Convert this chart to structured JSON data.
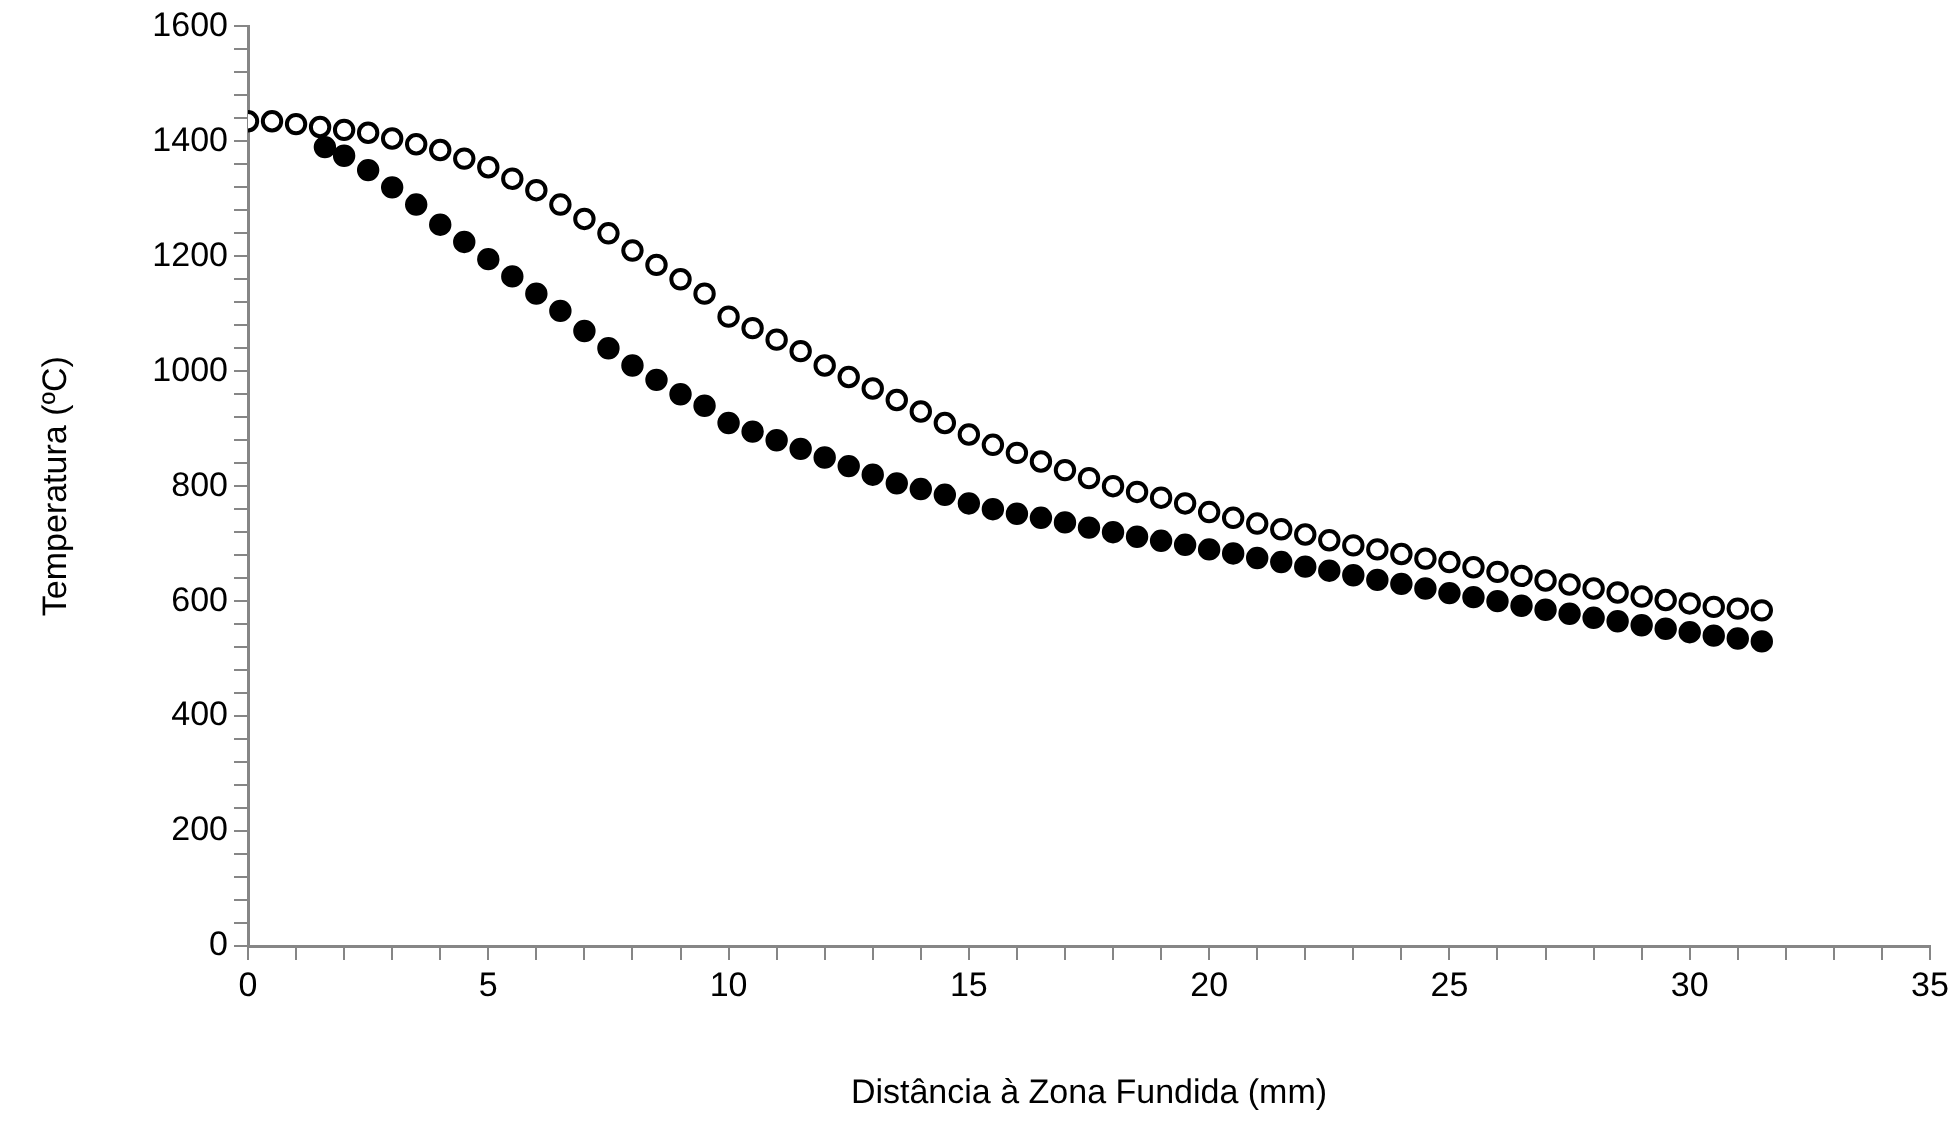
{
  "chart_data": {
    "type": "scatter",
    "xlabel": "Distância à Zona Fundida (mm)",
    "ylabel": "Temperatura (ºC)",
    "xlim": [
      0,
      35
    ],
    "ylim": [
      0,
      1600
    ],
    "xticks": [
      0,
      {
        "value": 1,
        "label": null
      },
      {
        "value": 2,
        "label": null
      },
      {
        "value": 3,
        "label": null
      },
      {
        "value": 4,
        "label": null
      },
      5,
      {
        "value": 6,
        "label": null
      },
      {
        "value": 7,
        "label": null
      },
      {
        "value": 8,
        "label": null
      },
      {
        "value": 9,
        "label": null
      },
      10,
      {
        "value": 11,
        "label": null
      },
      {
        "value": 12,
        "label": null
      },
      {
        "value": 13,
        "label": null
      },
      {
        "value": 14,
        "label": null
      },
      15,
      {
        "value": 16,
        "label": null
      },
      {
        "value": 17,
        "label": null
      },
      {
        "value": 18,
        "label": null
      },
      {
        "value": 19,
        "label": null
      },
      20,
      {
        "value": 21,
        "label": null
      },
      {
        "value": 22,
        "label": null
      },
      {
        "value": 23,
        "label": null
      },
      {
        "value": 24,
        "label": null
      },
      25,
      {
        "value": 26,
        "label": null
      },
      {
        "value": 27,
        "label": null
      },
      {
        "value": 28,
        "label": null
      },
      {
        "value": 29,
        "label": null
      },
      30,
      {
        "value": 31,
        "label": null
      },
      {
        "value": 32,
        "label": null
      },
      {
        "value": 33,
        "label": null
      },
      {
        "value": 34,
        "label": null
      },
      35
    ],
    "yticks": [
      0,
      {
        "value": 40,
        "label": null
      },
      {
        "value": 80,
        "label": null
      },
      {
        "value": 120,
        "label": null
      },
      {
        "value": 160,
        "label": null
      },
      200,
      {
        "value": 240,
        "label": null
      },
      {
        "value": 280,
        "label": null
      },
      {
        "value": 320,
        "label": null
      },
      {
        "value": 360,
        "label": null
      },
      400,
      {
        "value": 440,
        "label": null
      },
      {
        "value": 480,
        "label": null
      },
      {
        "value": 520,
        "label": null
      },
      {
        "value": 560,
        "label": null
      },
      600,
      {
        "value": 640,
        "label": null
      },
      {
        "value": 680,
        "label": null
      },
      {
        "value": 720,
        "label": null
      },
      {
        "value": 760,
        "label": null
      },
      800,
      {
        "value": 840,
        "label": null
      },
      {
        "value": 880,
        "label": null
      },
      {
        "value": 920,
        "label": null
      },
      {
        "value": 960,
        "label": null
      },
      1000,
      {
        "value": 1040,
        "label": null
      },
      {
        "value": 1080,
        "label": null
      },
      {
        "value": 1120,
        "label": null
      },
      {
        "value": 1160,
        "label": null
      },
      1200,
      {
        "value": 1240,
        "label": null
      },
      {
        "value": 1280,
        "label": null
      },
      {
        "value": 1320,
        "label": null
      },
      {
        "value": 1360,
        "label": null
      },
      1400,
      {
        "value": 1440,
        "label": null
      },
      {
        "value": 1480,
        "label": null
      },
      {
        "value": 1520,
        "label": null
      },
      {
        "value": 1560,
        "label": null
      },
      1600
    ],
    "grid": false,
    "legend": false,
    "marker": "circle",
    "series": [
      {
        "color": "#ffffff",
        "x": [
          0,
          0.5,
          1,
          1.5,
          2,
          2.5,
          3,
          3.5,
          4,
          4.5,
          5,
          5.5,
          6,
          6.5,
          7,
          7.5,
          8,
          8.5,
          9,
          9.5,
          10,
          10.5,
          11,
          11.5,
          12,
          12.5,
          13,
          13.5,
          14,
          14.5,
          15,
          15.5,
          16,
          16.5,
          17,
          17.5,
          18,
          18.5,
          19,
          19.5,
          20,
          20.5,
          21,
          21.5,
          22,
          22.5,
          23,
          23.5,
          24,
          24.5,
          25,
          25.5,
          26,
          26.5,
          27,
          27.5,
          28,
          28.5,
          29,
          29.5,
          30,
          30.5,
          31,
          31.5
        ],
        "values": [
          1435,
          1435,
          1430,
          1425,
          1420,
          1415,
          1405,
          1395,
          1385,
          1370,
          1355,
          1335,
          1315,
          1290,
          1265,
          1240,
          1210,
          1185,
          1160,
          1135,
          1095,
          1075,
          1055,
          1035,
          1010,
          990,
          970,
          950,
          930,
          910,
          890,
          872,
          858,
          843,
          828,
          814,
          800,
          790,
          780,
          770,
          755,
          745,
          735,
          725,
          716,
          706,
          697,
          690,
          682,
          674,
          668,
          659,
          651,
          644,
          636,
          629,
          622,
          615,
          608,
          602,
          596,
          590,
          587,
          584
        ]
      },
      {
        "color": "#000000",
        "x": [
          1.6,
          2,
          2.5,
          3,
          3.5,
          4,
          4.5,
          5,
          5.5,
          6,
          6.5,
          7,
          7.5,
          8,
          8.5,
          9,
          9.5,
          10,
          10.5,
          11,
          11.5,
          12,
          12.5,
          13,
          13.5,
          14,
          14.5,
          15,
          15.5,
          16,
          16.5,
          17,
          17.5,
          18,
          18.5,
          19,
          19.5,
          20,
          20.5,
          21,
          21.5,
          22,
          22.5,
          23,
          23.5,
          24,
          24.5,
          25,
          25.5,
          26,
          26.5,
          27,
          27.5,
          28,
          28.5,
          29,
          29.5,
          30,
          30.5,
          31,
          31.5
        ],
        "values": [
          1390,
          1375,
          1350,
          1320,
          1290,
          1255,
          1225,
          1195,
          1165,
          1135,
          1105,
          1070,
          1040,
          1010,
          985,
          960,
          940,
          910,
          895,
          880,
          865,
          850,
          835,
          820,
          805,
          795,
          785,
          770,
          760,
          752,
          745,
          737,
          728,
          720,
          712,
          705,
          698,
          690,
          683,
          675,
          668,
          660,
          653,
          645,
          637,
          630,
          622,
          614,
          607,
          600,
          592,
          585,
          578,
          571,
          565,
          558,
          552,
          546,
          540,
          535,
          530
        ]
      }
    ]
  }
}
